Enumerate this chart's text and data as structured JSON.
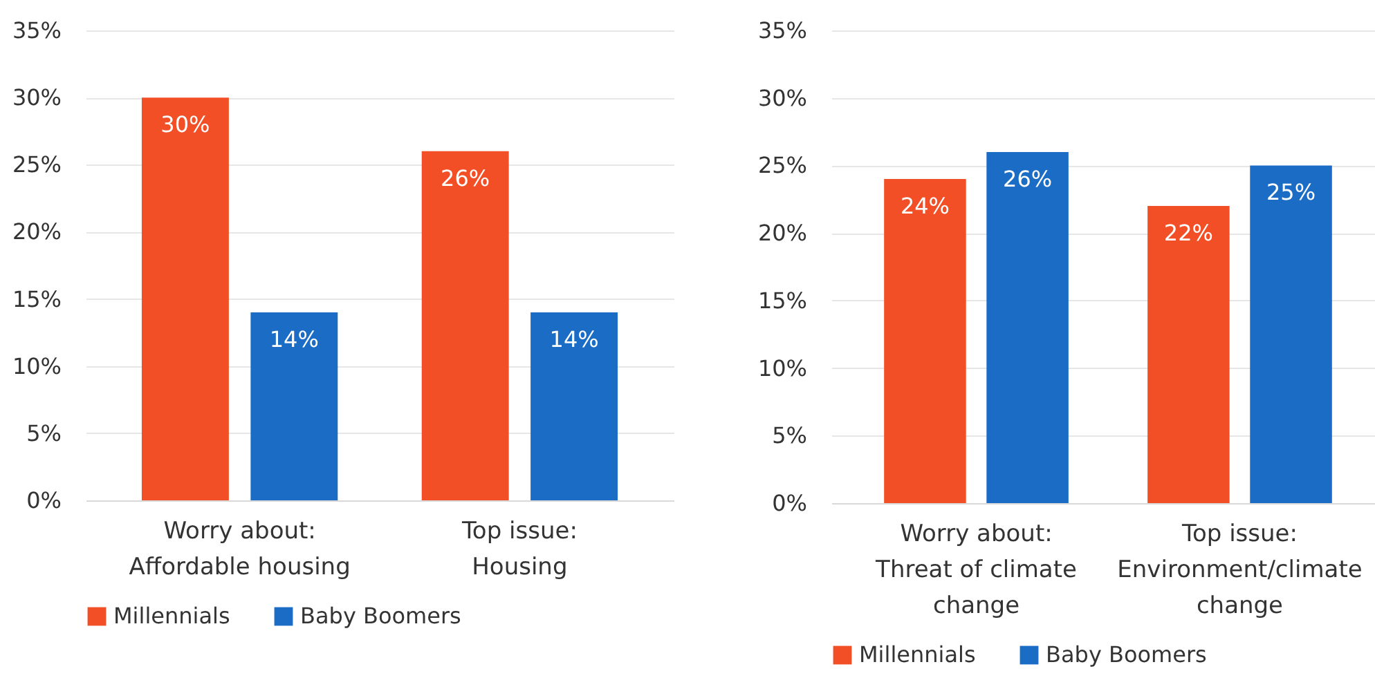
{
  "chart_data": [
    {
      "type": "bar",
      "categories": [
        "Worry about:\nAffordable housing",
        "Top issue:\nHousing"
      ],
      "series": [
        {
          "name": "Millennials",
          "color": "#f24f26",
          "values": [
            30,
            26
          ],
          "value_labels": [
            "30%",
            "26%"
          ]
        },
        {
          "name": "Baby Boomers",
          "color": "#1a6cc5",
          "values": [
            14,
            14
          ],
          "value_labels": [
            "14%",
            "14%"
          ]
        }
      ],
      "ylim": [
        0,
        35
      ],
      "yticks": [
        {
          "value": 0,
          "label": "0%"
        },
        {
          "value": 5,
          "label": "5%"
        },
        {
          "value": 10,
          "label": "10%"
        },
        {
          "value": 15,
          "label": "15%"
        },
        {
          "value": 20,
          "label": "20%"
        },
        {
          "value": 25,
          "label": "25%"
        },
        {
          "value": 30,
          "label": "30%"
        },
        {
          "value": 35,
          "label": "35%"
        }
      ],
      "grid": "y",
      "legend": "bottom"
    },
    {
      "type": "bar",
      "categories": [
        "Worry about:\nThreat of climate\nchange",
        "Top issue:\nEnvironment/climate\nchange"
      ],
      "series": [
        {
          "name": "Millennials",
          "color": "#f24f26",
          "values": [
            24,
            22
          ],
          "value_labels": [
            "24%",
            "22%"
          ]
        },
        {
          "name": "Baby Boomers",
          "color": "#1a6cc5",
          "values": [
            26,
            25
          ],
          "value_labels": [
            "26%",
            "25%"
          ]
        }
      ],
      "ylim": [
        0,
        35
      ],
      "yticks": [
        {
          "value": 0,
          "label": "0%"
        },
        {
          "value": 5,
          "label": "5%"
        },
        {
          "value": 10,
          "label": "10%"
        },
        {
          "value": 15,
          "label": "15%"
        },
        {
          "value": 20,
          "label": "20%"
        },
        {
          "value": 25,
          "label": "25%"
        },
        {
          "value": 30,
          "label": "30%"
        },
        {
          "value": 35,
          "label": "35%"
        }
      ],
      "grid": "y",
      "legend": "bottom"
    }
  ]
}
